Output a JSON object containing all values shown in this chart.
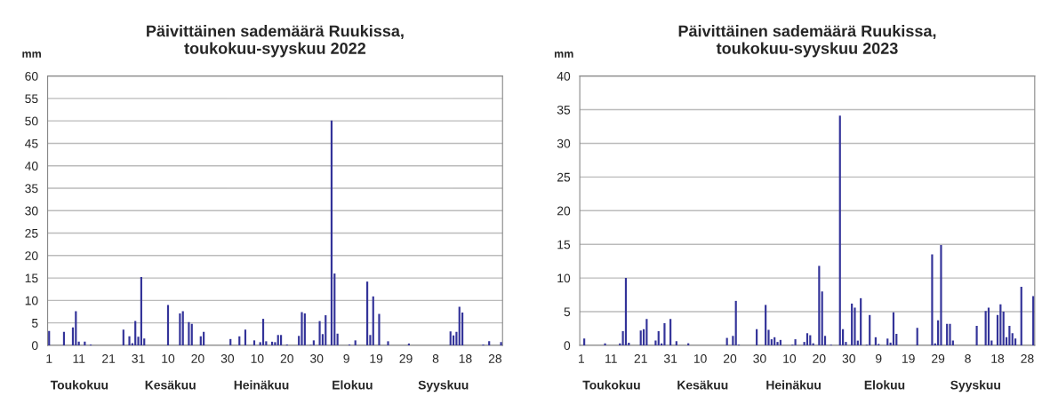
{
  "chart_data": [
    {
      "type": "bar",
      "title": "Päivittäinen sademäärä Ruukissa,\ntoukokuu-syyskuu 2022",
      "ylabel": "mm",
      "categories": [
        "1",
        null,
        null,
        null,
        null,
        null,
        null,
        null,
        null,
        null,
        "11",
        null,
        null,
        null,
        null,
        null,
        null,
        null,
        null,
        null,
        "21",
        null,
        null,
        null,
        null,
        null,
        null,
        null,
        null,
        null,
        "31",
        null,
        null,
        null,
        null,
        null,
        null,
        null,
        null,
        null,
        "10",
        null,
        null,
        null,
        null,
        null,
        null,
        null,
        null,
        null,
        "20",
        null,
        null,
        null,
        null,
        null,
        null,
        null,
        null,
        null,
        "30",
        null,
        null,
        null,
        null,
        null,
        null,
        null,
        null,
        null,
        "10",
        null,
        null,
        null,
        null,
        null,
        null,
        null,
        null,
        null,
        "20",
        null,
        null,
        null,
        null,
        null,
        null,
        null,
        null,
        null,
        "30",
        null,
        null,
        null,
        null,
        null,
        null,
        null,
        null,
        null,
        "9",
        null,
        null,
        null,
        null,
        null,
        null,
        null,
        null,
        null,
        "19",
        null,
        null,
        null,
        null,
        null,
        null,
        null,
        null,
        null,
        "29",
        null,
        null,
        null,
        null,
        null,
        null,
        null,
        null,
        null,
        "8",
        null,
        null,
        null,
        null,
        null,
        null,
        null,
        null,
        null,
        "18",
        null,
        null,
        null,
        null,
        null,
        null,
        null,
        null,
        null,
        "28",
        null,
        null
      ],
      "values": [
        3.2,
        0,
        0,
        0,
        0,
        3.0,
        0,
        0,
        4.0,
        7.6,
        0.8,
        0,
        0.8,
        0,
        0.2,
        0,
        0,
        0,
        0,
        0,
        0,
        0,
        0,
        0,
        0,
        3.5,
        0,
        2.0,
        0.5,
        5.4,
        1.9,
        15.2,
        1.5,
        0,
        0,
        0,
        0,
        0,
        0,
        0,
        9.0,
        0,
        0,
        0,
        7.1,
        7.6,
        0,
        5.2,
        4.8,
        0,
        0,
        2.0,
        3.0,
        0,
        0,
        0,
        0,
        0,
        0,
        0,
        0,
        1.4,
        0,
        0,
        2.0,
        0,
        3.5,
        0,
        0,
        1.1,
        0,
        0.7,
        5.9,
        0.9,
        0,
        0.8,
        0.7,
        2.3,
        2.3,
        0,
        0.2,
        0,
        0,
        0,
        2.1,
        7.4,
        7.1,
        0,
        0.1,
        1.1,
        0,
        5.4,
        2.5,
        6.7,
        0,
        50.1,
        16.0,
        2.6,
        0,
        0,
        0,
        0.2,
        0,
        1.1,
        0,
        0,
        0,
        14.2,
        2.3,
        10.9,
        0,
        7.0,
        0,
        0,
        0.9,
        0,
        0,
        0,
        0,
        0,
        0,
        0.4,
        0,
        0,
        0,
        0,
        0,
        0,
        0,
        0,
        0,
        0,
        0,
        0,
        0,
        3.1,
        2.2,
        3.0,
        8.6,
        7.3,
        0,
        0,
        0,
        0,
        0,
        0,
        0.2,
        0,
        0.9,
        0,
        0,
        0,
        0.7
      ],
      "color": "#333399",
      "ylim": [
        0,
        60
      ],
      "yticks": [
        0,
        5,
        10,
        15,
        20,
        25,
        30,
        35,
        40,
        45,
        50,
        55,
        60
      ],
      "grid": "y",
      "annotations": [
        "Toukokuu",
        "Kesäkuu",
        "Heinäkuu",
        "Elokuu",
        "Syyskuu"
      ]
    },
    {
      "type": "bar",
      "title": "Päivittäinen sademäärä Ruukissa,\ntoukokuu-syyskuu 2023",
      "ylabel": "mm",
      "categories": [
        "1",
        null,
        null,
        null,
        null,
        null,
        null,
        null,
        null,
        null,
        "11",
        null,
        null,
        null,
        null,
        null,
        null,
        null,
        null,
        null,
        "21",
        null,
        null,
        null,
        null,
        null,
        null,
        null,
        null,
        null,
        "31",
        null,
        null,
        null,
        null,
        null,
        null,
        null,
        null,
        null,
        "10",
        null,
        null,
        null,
        null,
        null,
        null,
        null,
        null,
        null,
        "20",
        null,
        null,
        null,
        null,
        null,
        null,
        null,
        null,
        null,
        "30",
        null,
        null,
        null,
        null,
        null,
        null,
        null,
        null,
        null,
        "10",
        null,
        null,
        null,
        null,
        null,
        null,
        null,
        null,
        null,
        "20",
        null,
        null,
        null,
        null,
        null,
        null,
        null,
        null,
        null,
        "30",
        null,
        null,
        null,
        null,
        null,
        null,
        null,
        null,
        null,
        "9",
        null,
        null,
        null,
        null,
        null,
        null,
        null,
        null,
        null,
        "19",
        null,
        null,
        null,
        null,
        null,
        null,
        null,
        null,
        null,
        "29",
        null,
        null,
        null,
        null,
        null,
        null,
        null,
        null,
        null,
        "8",
        null,
        null,
        null,
        null,
        null,
        null,
        null,
        null,
        null,
        "18",
        null,
        null,
        null,
        null,
        null,
        null,
        null,
        null,
        null,
        "28",
        null,
        null
      ],
      "values": [
        0,
        1.0,
        0,
        0,
        0,
        0,
        0,
        0,
        0.3,
        0,
        0,
        0,
        0,
        0.3,
        2.1,
        10.0,
        0.4,
        0,
        0,
        0,
        2.2,
        2.4,
        3.9,
        0,
        0,
        0.7,
        2.1,
        0.3,
        3.3,
        0,
        3.9,
        0,
        0.6,
        0,
        0,
        0,
        0.3,
        0,
        0,
        0,
        0,
        0,
        0,
        0,
        0,
        0,
        0,
        0,
        0,
        1.1,
        0,
        1.4,
        6.6,
        0.1,
        0,
        0,
        0,
        0,
        0,
        2.4,
        0,
        0,
        6.0,
        2.3,
        0.9,
        1.2,
        0.5,
        0.8,
        0,
        0,
        0,
        0.1,
        0.9,
        0,
        0,
        0.5,
        1.8,
        1.5,
        0.3,
        0,
        11.8,
        8.0,
        1.4,
        0,
        0.1,
        0,
        0,
        34.1,
        2.4,
        0.5,
        0,
        6.2,
        5.6,
        0.7,
        7.0,
        0,
        0.1,
        4.5,
        0,
        1.2,
        0.2,
        0,
        0,
        1.0,
        0.4,
        4.9,
        1.7,
        0,
        0,
        0,
        0,
        0,
        0,
        2.6,
        0,
        0,
        0,
        0,
        13.5,
        0.3,
        3.7,
        14.9,
        0,
        3.2,
        3.2,
        0.7,
        0,
        0,
        0,
        0,
        0,
        0,
        0,
        2.9,
        0,
        0,
        5.1,
        5.6,
        0.7,
        0,
        4.5,
        6.1,
        5.0,
        1.2,
        2.9,
        1.8,
        1.0,
        0,
        8.7,
        0,
        0,
        0,
        7.3
      ],
      "color": "#333399",
      "ylim": [
        0,
        40
      ],
      "yticks": [
        0,
        5,
        10,
        15,
        20,
        25,
        30,
        35,
        40
      ],
      "grid": "y",
      "annotations": [
        "Toukokuu",
        "Kesäkuu",
        "Heinäkuu",
        "Elokuu",
        "Syyskuu"
      ]
    }
  ]
}
